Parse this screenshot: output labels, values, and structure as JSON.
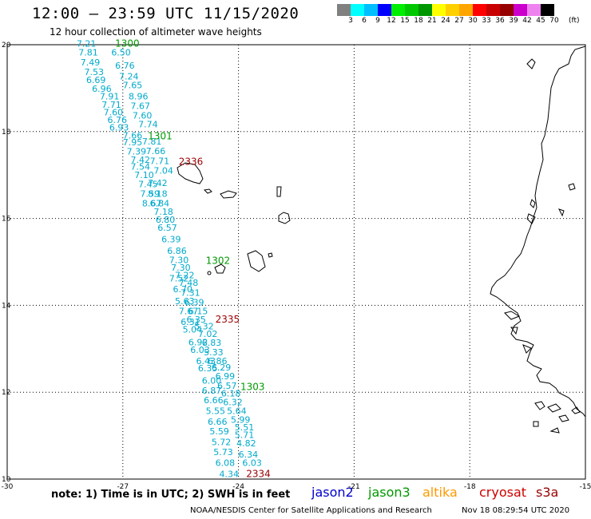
{
  "header": {
    "title": "12:00 – 23:59 UTC 11/15/2020",
    "subtitle": "12 hour collection of altimeter wave heights"
  },
  "colorbar": {
    "colors": [
      "#808080",
      "#00ffff",
      "#00bfff",
      "#0000ff",
      "#00ee00",
      "#00c800",
      "#009600",
      "#ffff00",
      "#ffd000",
      "#ffa500",
      "#ff0000",
      "#c80000",
      "#960000",
      "#cc00cc",
      "#ee82ee",
      "#000000"
    ],
    "labels": [
      "3",
      "6",
      "9",
      "12",
      "15",
      "18",
      "21",
      "24",
      "27",
      "30",
      "33",
      "36",
      "39",
      "42",
      "45",
      "70"
    ],
    "unit": "(ft)"
  },
  "axes": {
    "x_ticks": [
      "-30",
      "-27",
      "-24",
      "-21",
      "-18",
      "-15"
    ],
    "y_ticks": [
      "20",
      "18",
      "16",
      "14",
      "12",
      "10"
    ]
  },
  "footer": {
    "note": "note: 1) Time is in UTC; 2) SWH is in feet",
    "credit": "NOAA/NESDIS Center for Satellite Applications and Research",
    "timestamp": "Nov 18 08:29:54 UTC 2020"
  },
  "legend": [
    {
      "name": "jason2",
      "color": "#0000cc"
    },
    {
      "name": "jason3",
      "color": "#009900"
    },
    {
      "name": "altika",
      "color": "#ff9900"
    },
    {
      "name": "cryosat",
      "color": "#cc0000"
    },
    {
      "name": "s3a",
      "color": "#990000"
    }
  ],
  "track_times": [
    {
      "label": "1300",
      "lon": -27.2,
      "lat": 19.95,
      "color": "#009900"
    },
    {
      "label": "1301",
      "lon": -26.35,
      "lat": 17.82,
      "color": "#009900"
    },
    {
      "label": "2336",
      "lon": -25.55,
      "lat": 17.23,
      "color": "#990000"
    },
    {
      "label": "1302",
      "lon": -24.85,
      "lat": 14.95,
      "color": "#009900"
    },
    {
      "label": "2335",
      "lon": -24.6,
      "lat": 13.6,
      "color": "#990000"
    },
    {
      "label": "1303",
      "lon": -23.95,
      "lat": 12.05,
      "color": "#009900"
    },
    {
      "label": "2334",
      "lon": -23.8,
      "lat": 10.05,
      "color": "#990000"
    }
  ],
  "swh_points": [
    {
      "v": "7.21",
      "lon": -28.2,
      "lat": 19.95
    },
    {
      "v": "7.81",
      "lon": -28.15,
      "lat": 19.75
    },
    {
      "v": "6.50",
      "lon": -27.3,
      "lat": 19.75
    },
    {
      "v": "7.49",
      "lon": -28.1,
      "lat": 19.52
    },
    {
      "v": "6.76",
      "lon": -27.2,
      "lat": 19.45
    },
    {
      "v": "7.53",
      "lon": -28.0,
      "lat": 19.3
    },
    {
      "v": "7.24",
      "lon": -27.1,
      "lat": 19.2
    },
    {
      "v": "6.69",
      "lon": -27.95,
      "lat": 19.12
    },
    {
      "v": "7.65",
      "lon": -27.0,
      "lat": 19.0
    },
    {
      "v": "6.96",
      "lon": -27.8,
      "lat": 18.92
    },
    {
      "v": "7.91",
      "lon": -27.6,
      "lat": 18.74
    },
    {
      "v": "8.96",
      "lon": -26.85,
      "lat": 18.74
    },
    {
      "v": "7.71",
      "lon": -27.55,
      "lat": 18.55
    },
    {
      "v": "7.67",
      "lon": -26.8,
      "lat": 18.52
    },
    {
      "v": "7.60",
      "lon": -27.5,
      "lat": 18.37
    },
    {
      "v": "7.60",
      "lon": -26.75,
      "lat": 18.3
    },
    {
      "v": "6.76",
      "lon": -27.4,
      "lat": 18.2
    },
    {
      "v": "7.74",
      "lon": -26.6,
      "lat": 18.1
    },
    {
      "v": "6.93",
      "lon": -27.35,
      "lat": 18.02
    },
    {
      "v": "7.66",
      "lon": -27.0,
      "lat": 17.84
    },
    {
      "v": "7.95",
      "lon": -27.0,
      "lat": 17.68
    },
    {
      "v": "7.81",
      "lon": -26.5,
      "lat": 17.7
    },
    {
      "v": "7.39",
      "lon": -26.9,
      "lat": 17.47
    },
    {
      "v": "7.66",
      "lon": -26.4,
      "lat": 17.48
    },
    {
      "v": "7.42",
      "lon": -26.8,
      "lat": 17.28
    },
    {
      "v": "7.71",
      "lon": -26.3,
      "lat": 17.25
    },
    {
      "v": "7.54",
      "lon": -26.8,
      "lat": 17.12
    },
    {
      "v": "7.04",
      "lon": -26.2,
      "lat": 17.03
    },
    {
      "v": "7.10",
      "lon": -26.7,
      "lat": 16.93
    },
    {
      "v": "7.42",
      "lon": -26.35,
      "lat": 16.75
    },
    {
      "v": "7.45",
      "lon": -26.6,
      "lat": 16.72
    },
    {
      "v": "7.59",
      "lon": -26.55,
      "lat": 16.5
    },
    {
      "v": "8.18",
      "lon": -26.35,
      "lat": 16.5
    },
    {
      "v": "8.67",
      "lon": -26.5,
      "lat": 16.28
    },
    {
      "v": "6.84",
      "lon": -26.3,
      "lat": 16.28
    },
    {
      "v": "7.18",
      "lon": -26.2,
      "lat": 16.08
    },
    {
      "v": "6.80",
      "lon": -26.15,
      "lat": 15.9
    },
    {
      "v": "6.57",
      "lon": -26.1,
      "lat": 15.72
    },
    {
      "v": "6.39",
      "lon": -26.0,
      "lat": 15.45
    },
    {
      "v": "6.86",
      "lon": -25.85,
      "lat": 15.18
    },
    {
      "v": "7.30",
      "lon": -25.8,
      "lat": 14.97
    },
    {
      "v": "7.30",
      "lon": -25.75,
      "lat": 14.8
    },
    {
      "v": "7.22",
      "lon": -25.65,
      "lat": 14.62
    },
    {
      "v": "7.52",
      "lon": -25.8,
      "lat": 14.55
    },
    {
      "v": "7.48",
      "lon": -25.55,
      "lat": 14.45
    },
    {
      "v": "6.70",
      "lon": -25.7,
      "lat": 14.3
    },
    {
      "v": "7.31",
      "lon": -25.5,
      "lat": 14.22
    },
    {
      "v": "5.63",
      "lon": -25.65,
      "lat": 14.03
    },
    {
      "v": "6.39",
      "lon": -25.4,
      "lat": 14.0
    },
    {
      "v": "7.67",
      "lon": -25.55,
      "lat": 13.8
    },
    {
      "v": "6.15",
      "lon": -25.3,
      "lat": 13.8
    },
    {
      "v": "6.35",
      "lon": -25.35,
      "lat": 13.6
    },
    {
      "v": "6.31",
      "lon": -25.5,
      "lat": 13.55
    },
    {
      "v": "5.32",
      "lon": -25.15,
      "lat": 13.45
    },
    {
      "v": "5.04",
      "lon": -25.45,
      "lat": 13.37
    },
    {
      "v": "7.02",
      "lon": -25.05,
      "lat": 13.27
    },
    {
      "v": "6.92",
      "lon": -25.3,
      "lat": 13.08
    },
    {
      "v": "6.83",
      "lon": -24.95,
      "lat": 13.07
    },
    {
      "v": "6.03",
      "lon": -25.25,
      "lat": 12.9
    },
    {
      "v": "5.33",
      "lon": -24.9,
      "lat": 12.85
    },
    {
      "v": "6.43",
      "lon": -25.1,
      "lat": 12.65
    },
    {
      "v": "6.86",
      "lon": -24.8,
      "lat": 12.65
    },
    {
      "v": "6.35",
      "lon": -25.05,
      "lat": 12.48
    },
    {
      "v": "6.29",
      "lon": -24.7,
      "lat": 12.5
    },
    {
      "v": "6.99",
      "lon": -24.6,
      "lat": 12.3
    },
    {
      "v": "6.00",
      "lon": -24.95,
      "lat": 12.2
    },
    {
      "v": "6.57",
      "lon": -24.55,
      "lat": 12.08
    },
    {
      "v": "6.87",
      "lon": -24.95,
      "lat": 11.97
    },
    {
      "v": "6.18",
      "lon": -24.45,
      "lat": 11.9
    },
    {
      "v": "6.66",
      "lon": -24.9,
      "lat": 11.75
    },
    {
      "v": "6.32",
      "lon": -24.4,
      "lat": 11.7
    },
    {
      "v": "5.55",
      "lon": -24.85,
      "lat": 11.5
    },
    {
      "v": "5.64",
      "lon": -24.3,
      "lat": 11.5
    },
    {
      "v": "5.99",
      "lon": -24.2,
      "lat": 11.3
    },
    {
      "v": "6.66",
      "lon": -24.8,
      "lat": 11.25
    },
    {
      "v": "5.51",
      "lon": -24.1,
      "lat": 11.12
    },
    {
      "v": "5.59",
      "lon": -24.75,
      "lat": 11.03
    },
    {
      "v": "5.71",
      "lon": -24.1,
      "lat": 10.95
    },
    {
      "v": "5.72",
      "lon": -24.7,
      "lat": 10.78
    },
    {
      "v": "4.82",
      "lon": -24.05,
      "lat": 10.75
    },
    {
      "v": "5.73",
      "lon": -24.65,
      "lat": 10.55
    },
    {
      "v": "6.34",
      "lon": -24.0,
      "lat": 10.5
    },
    {
      "v": "6.08",
      "lon": -24.6,
      "lat": 10.3
    },
    {
      "v": "6.03",
      "lon": -23.9,
      "lat": 10.3
    },
    {
      "v": "4.34",
      "lon": -24.5,
      "lat": 10.05
    },
    {
      "v": "2334",
      "lon": -23.95,
      "lat": 10.05,
      "skip": true
    }
  ]
}
